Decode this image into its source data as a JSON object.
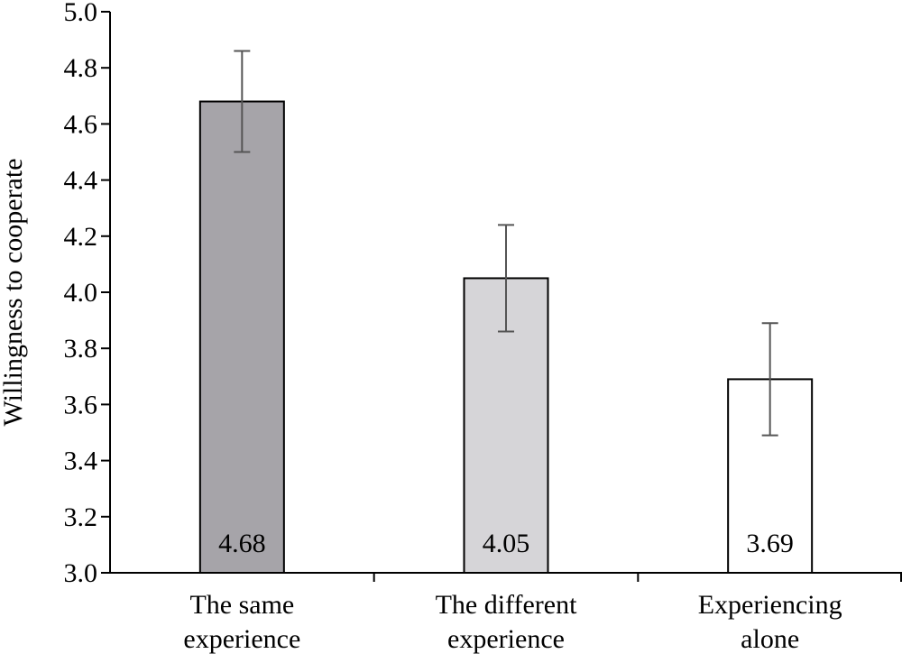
{
  "chart_data": {
    "type": "bar",
    "title": "",
    "xlabel": "",
    "ylabel": "Willingness to cooperate",
    "ylim": [
      3.0,
      5.0
    ],
    "yticks": [
      "3.0",
      "3.2",
      "3.4",
      "3.6",
      "3.8",
      "4.0",
      "4.2",
      "4.4",
      "4.6",
      "4.8",
      "5.0"
    ],
    "categories": [
      [
        "The same",
        "experience"
      ],
      [
        "The different",
        "experience"
      ],
      [
        "Experiencing",
        "alone"
      ]
    ],
    "values": [
      4.68,
      4.05,
      3.69
    ],
    "value_labels": [
      "4.68",
      "4.05",
      "3.69"
    ],
    "error_low": [
      4.5,
      3.86,
      3.49
    ],
    "error_high": [
      4.86,
      4.24,
      3.89
    ],
    "colors": [
      "#a6a4a9",
      "#d6d5d8",
      "#ffffff"
    ],
    "error_color": "#555555",
    "grid": false
  }
}
